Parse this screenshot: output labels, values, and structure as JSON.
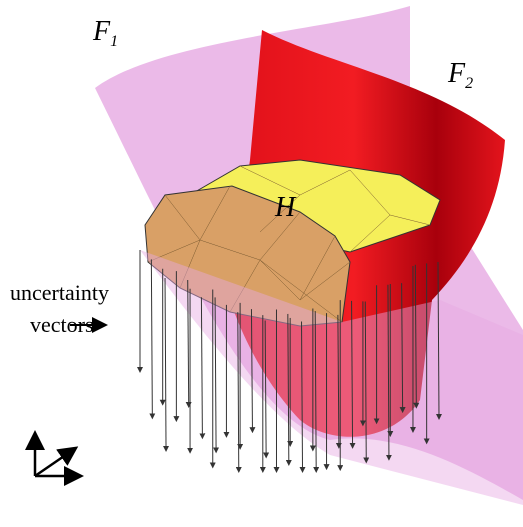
{
  "labels": {
    "f1": {
      "name": "F",
      "subscript": "1"
    },
    "f2": {
      "name": "F",
      "subscript": "2"
    },
    "h": "H",
    "uncertainty": [
      "uncertainty",
      "vectors"
    ]
  }
}
